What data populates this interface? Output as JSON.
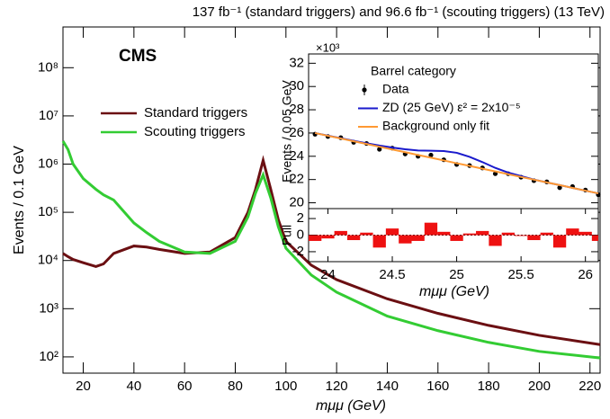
{
  "chart_data": [
    {
      "type": "line",
      "title": "137 fb⁻¹ (standard triggers) and 96.6 fb⁻¹ (scouting triggers) (13 TeV)",
      "annotation": "CMS",
      "x_label": "mμμ (GeV)",
      "y_label": "Events / 0.1 GeV",
      "log_y": true,
      "xlim": [
        12,
        224
      ],
      "xticks": [
        20,
        40,
        60,
        80,
        100,
        120,
        140,
        160,
        180,
        200,
        220
      ],
      "ylim": [
        46,
        700000000
      ],
      "yticks": [
        {
          "value": 100,
          "label": "10²"
        },
        {
          "value": 1000,
          "label": "10³"
        },
        {
          "value": 10000,
          "label": "10⁴"
        },
        {
          "value": 100000,
          "label": "10⁵"
        },
        {
          "value": 1000000,
          "label": "10⁶"
        },
        {
          "value": 10000000,
          "label": "10⁷"
        },
        {
          "value": 100000000,
          "label": "10⁸"
        }
      ],
      "x": [
        12,
        14,
        16,
        20,
        25,
        28,
        32,
        40,
        45,
        50,
        60,
        70,
        80,
        85,
        88,
        91,
        94,
        97,
        100,
        110,
        120,
        140,
        160,
        180,
        200,
        224
      ],
      "series": [
        {
          "name": "Standard triggers",
          "color": "#6b0f12",
          "values": [
            14000,
            12000,
            10500,
            9000,
            7500,
            8500,
            14000,
            20000,
            19000,
            17000,
            14000,
            15000,
            30000,
            100000,
            300000,
            1200000,
            300000,
            70000,
            25000,
            8000,
            4000,
            1600,
            800,
            450,
            280,
            180
          ]
        },
        {
          "name": "Scouting triggers",
          "color": "#33cc33",
          "values": [
            3000000,
            2000000,
            1000000,
            500000,
            300000,
            230000,
            180000,
            60000,
            38000,
            25000,
            15000,
            14000,
            25000,
            80000,
            250000,
            600000,
            200000,
            50000,
            18000,
            5000,
            2200,
            700,
            350,
            200,
            130,
            95
          ]
        }
      ]
    },
    {
      "type": "line",
      "title": "Barrel category",
      "y_label": "Events / 0.05 GeV",
      "y_multiplier": "×10³",
      "xlim": [
        23.85,
        26.1
      ],
      "ylim": [
        19.5,
        32.8
      ],
      "yticks": [
        20,
        22,
        24,
        26,
        28,
        30,
        32
      ],
      "x": [
        23.9,
        24.0,
        24.1,
        24.2,
        24.3,
        24.4,
        24.5,
        24.6,
        24.7,
        24.8,
        24.9,
        25.0,
        25.1,
        25.2,
        25.3,
        25.4,
        25.5,
        25.6,
        25.7,
        25.8,
        25.9,
        26.0,
        26.1
      ],
      "series": [
        {
          "name": "Data",
          "color": "#000000",
          "values": [
            25.9,
            25.7,
            25.6,
            25.2,
            25.1,
            24.6,
            24.7,
            24.2,
            24.0,
            24.1,
            23.7,
            23.3,
            23.2,
            23.0,
            22.5,
            22.5,
            22.2,
            21.9,
            21.8,
            21.3,
            21.4,
            21.1,
            20.7
          ],
          "errors": [
            0.15,
            0.15,
            0.15,
            0.15,
            0.15,
            0.15,
            0.15,
            0.15,
            0.15,
            0.15,
            0.15,
            0.15,
            0.15,
            0.15,
            0.15,
            0.15,
            0.15,
            0.15,
            0.15,
            0.15,
            0.15,
            0.15,
            0.15
          ]
        },
        {
          "name": "ZD (25 GeV) ε² = 2x10⁻⁵",
          "color": "#1a1acc",
          "values": [
            26.0,
            25.77,
            25.55,
            25.33,
            25.12,
            24.92,
            24.75,
            24.6,
            24.5,
            24.48,
            24.45,
            24.3,
            23.95,
            23.5,
            23.0,
            22.6,
            22.3,
            22.0,
            21.75,
            21.52,
            21.28,
            21.04,
            20.81
          ]
        },
        {
          "name": "Background only fit",
          "color": "#ff9933",
          "values": [
            26.0,
            25.76,
            25.53,
            25.29,
            25.06,
            24.82,
            24.58,
            24.35,
            24.11,
            23.88,
            23.64,
            23.4,
            23.17,
            22.93,
            22.7,
            22.46,
            22.22,
            21.99,
            21.75,
            21.52,
            21.28,
            21.04,
            20.81
          ]
        }
      ]
    },
    {
      "type": "bar",
      "y_label": "Pull",
      "x_label": "mμμ (GeV)",
      "color": "#ee1111",
      "xlim": [
        23.85,
        26.1
      ],
      "xticks": [
        24,
        24.5,
        25,
        25.5,
        26
      ],
      "ylim": [
        -3.2,
        3.2
      ],
      "yticks": [
        -2,
        0,
        2
      ],
      "x": [
        23.9,
        24.0,
        24.1,
        24.2,
        24.3,
        24.4,
        24.5,
        24.6,
        24.7,
        24.8,
        24.9,
        25.0,
        25.1,
        25.2,
        25.3,
        25.4,
        25.5,
        25.6,
        25.7,
        25.8,
        25.9,
        26.0,
        26.1
      ],
      "values": [
        -0.7,
        -0.4,
        0.5,
        -0.6,
        0.3,
        -1.5,
        0.8,
        -1,
        -0.7,
        1.5,
        0.4,
        -0.7,
        0.2,
        0.5,
        -1.3,
        0.3,
        -0.1,
        -0.6,
        0.3,
        -1.5,
        0.8,
        0.4,
        -0.7
      ]
    }
  ]
}
